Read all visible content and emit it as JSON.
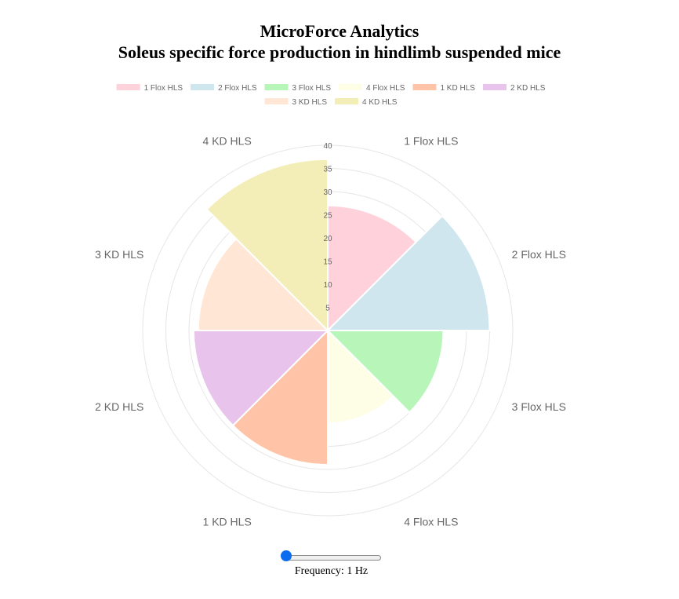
{
  "title": "MicroForce Analytics",
  "subtitle": "Soleus specific force production in hindlimb suspended mice",
  "chart_data": {
    "type": "polarArea",
    "categories": [
      "1 Flox HLS",
      "2 Flox HLS",
      "3 Flox HLS",
      "4 Flox HLS",
      "1 KD HLS",
      "2 KD HLS",
      "3 KD HLS",
      "4 KD HLS"
    ],
    "values": [
      27,
      35,
      25,
      20,
      29,
      29,
      28,
      37
    ],
    "colors": [
      "#ffd1da",
      "#cfe6ef",
      "#b8f5b8",
      "#fefde6",
      "#ffc4a8",
      "#e8c3ec",
      "#ffe6d5",
      "#f3eeb8"
    ],
    "rlim": [
      0,
      40
    ],
    "rticks": [
      "5",
      "10",
      "15",
      "20",
      "25",
      "30",
      "35",
      "40"
    ],
    "grid": true,
    "legend_position": "top"
  },
  "slider": {
    "label": "Frequency: 1 Hz",
    "value": 1,
    "min": 1,
    "max": 150
  }
}
